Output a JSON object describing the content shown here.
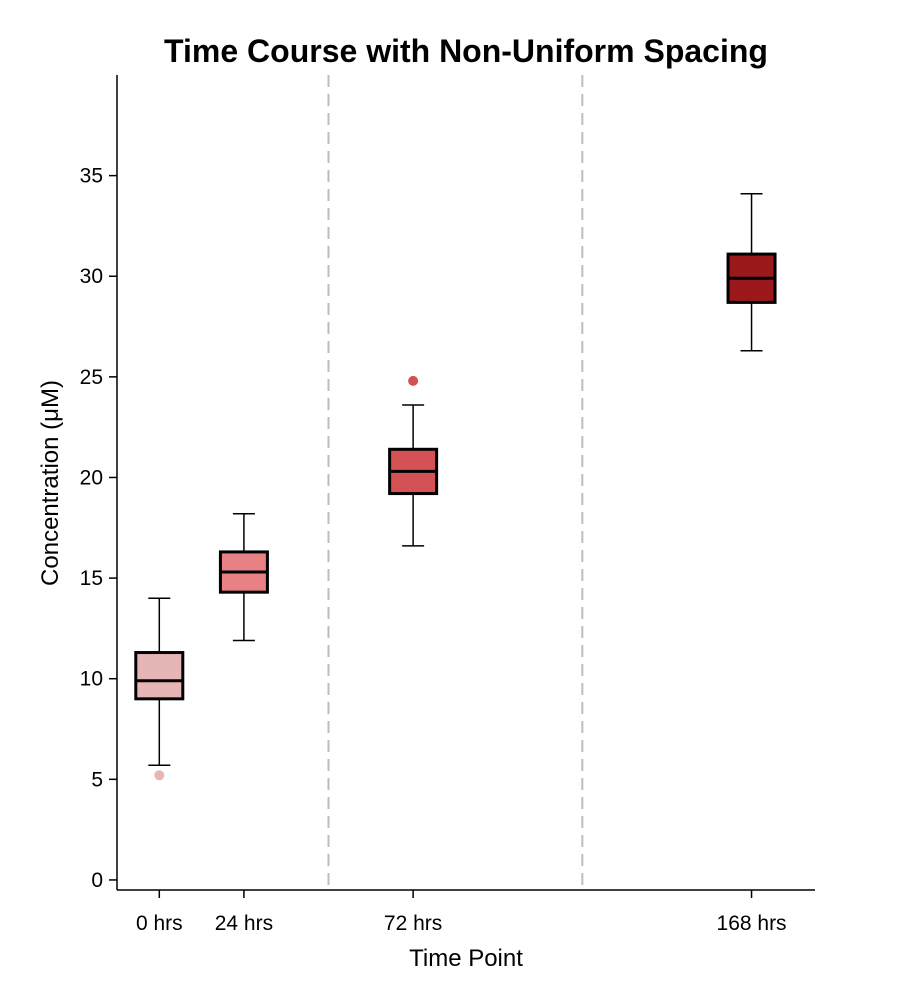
{
  "chart_data": {
    "type": "box",
    "title": "Time Course with Non-Uniform Spacing",
    "xlabel": "Time Point",
    "ylabel": "Concentration (μM)",
    "x_axis": {
      "min": -12,
      "max": 186
    },
    "ylim": [
      -0.5,
      40
    ],
    "yticks": [
      0,
      5,
      10,
      15,
      20,
      25,
      30,
      35
    ],
    "grid": false,
    "legend": "none",
    "reference_lines": [
      48,
      120
    ],
    "boxes": [
      {
        "label": "0 hrs",
        "x": 0,
        "whisker_low": 5.7,
        "q1": 9.0,
        "median": 9.9,
        "q3": 11.3,
        "whisker_high": 14.0,
        "outliers": [
          5.2
        ],
        "color": "#e6b5b6"
      },
      {
        "label": "24 hrs",
        "x": 24,
        "whisker_low": 11.9,
        "q1": 14.3,
        "median": 15.3,
        "q3": 16.3,
        "whisker_high": 18.2,
        "outliers": [],
        "color": "#e88183"
      },
      {
        "label": "72 hrs",
        "x": 72,
        "whisker_low": 16.6,
        "q1": 19.2,
        "median": 20.3,
        "q3": 21.4,
        "whisker_high": 23.6,
        "outliers": [
          24.8
        ],
        "color": "#d45255"
      },
      {
        "label": "168 hrs",
        "x": 168,
        "whisker_low": 26.3,
        "q1": 28.7,
        "median": 29.9,
        "q3": 31.1,
        "whisker_high": 34.1,
        "outliers": [],
        "color": "#9b181d"
      }
    ]
  }
}
